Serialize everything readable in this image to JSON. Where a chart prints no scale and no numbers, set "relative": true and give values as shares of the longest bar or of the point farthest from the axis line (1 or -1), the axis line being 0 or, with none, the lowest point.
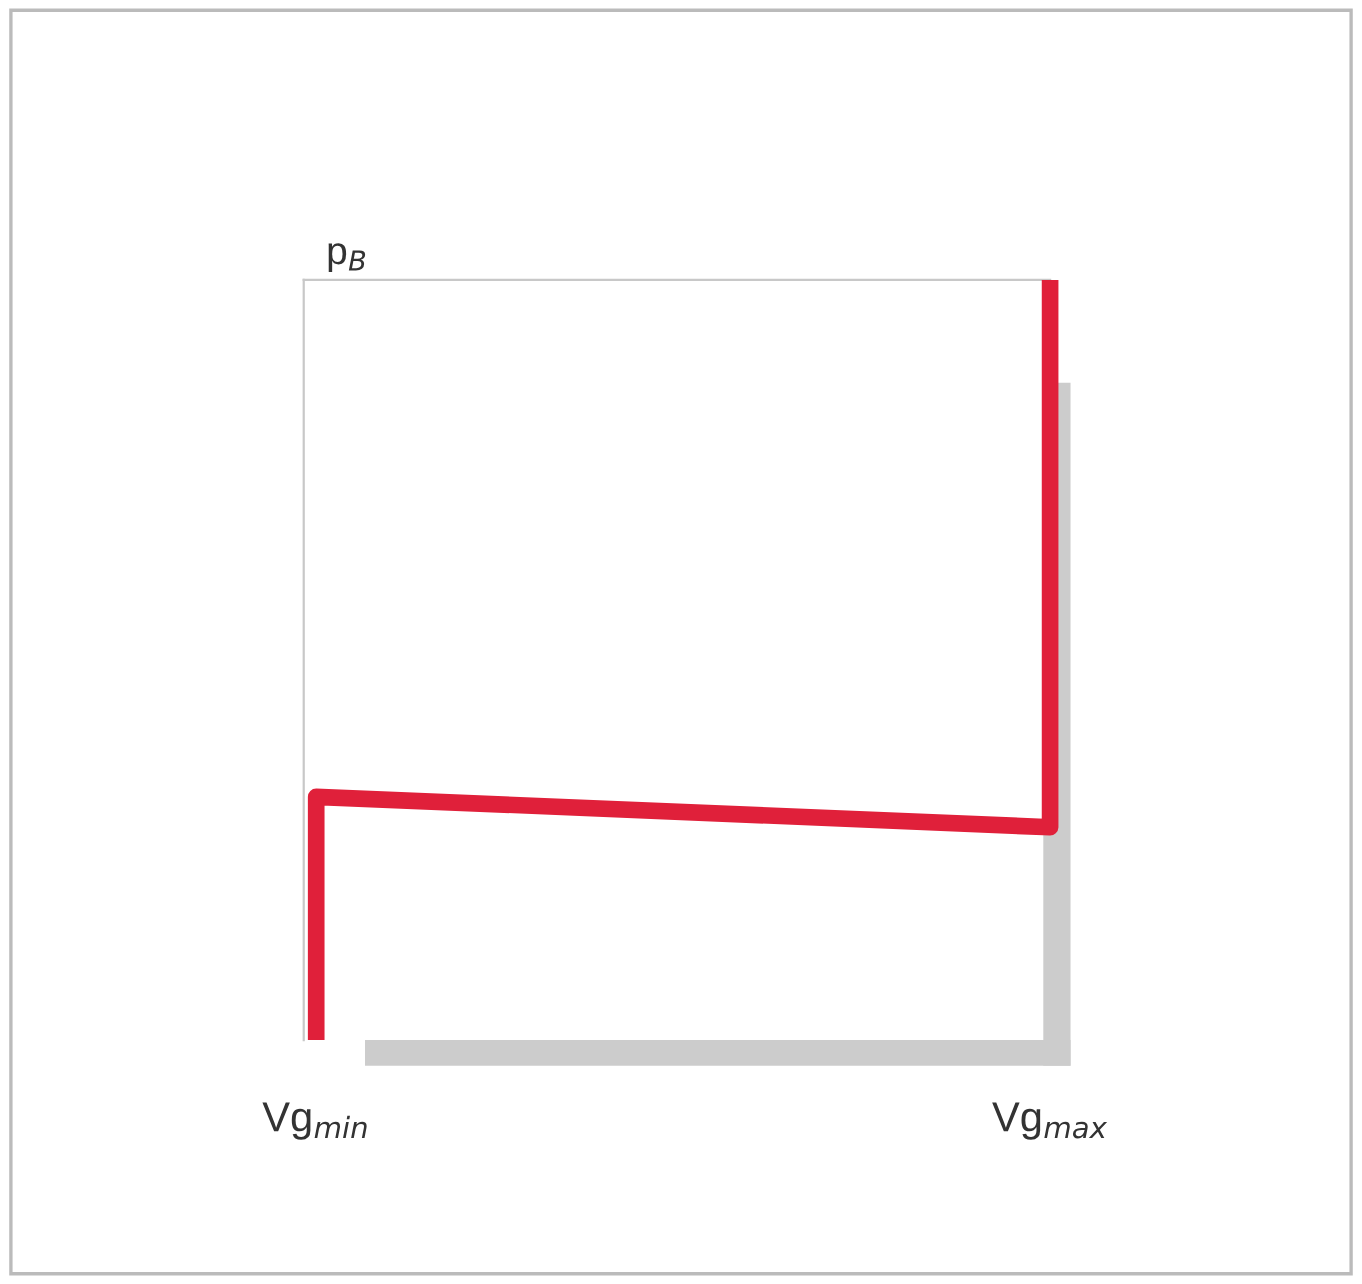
{
  "chart_data": {
    "type": "line",
    "relative": true,
    "ylabel": "p$_{B}$",
    "categories": [
      "Vg$_{min}$",
      "Vg$_{max}$"
    ],
    "series": [
      {
        "color": "#e0203a",
        "x": [
          "Vg$_{min}$",
          "Vg$_{min}$",
          "Vg$_{max}$",
          "Vg$_{max}$"
        ],
        "values": [
          0,
          0.32,
          0.28,
          1
        ]
      }
    ],
    "legend": false,
    "marker": "none",
    "line_style": "solid"
  }
}
